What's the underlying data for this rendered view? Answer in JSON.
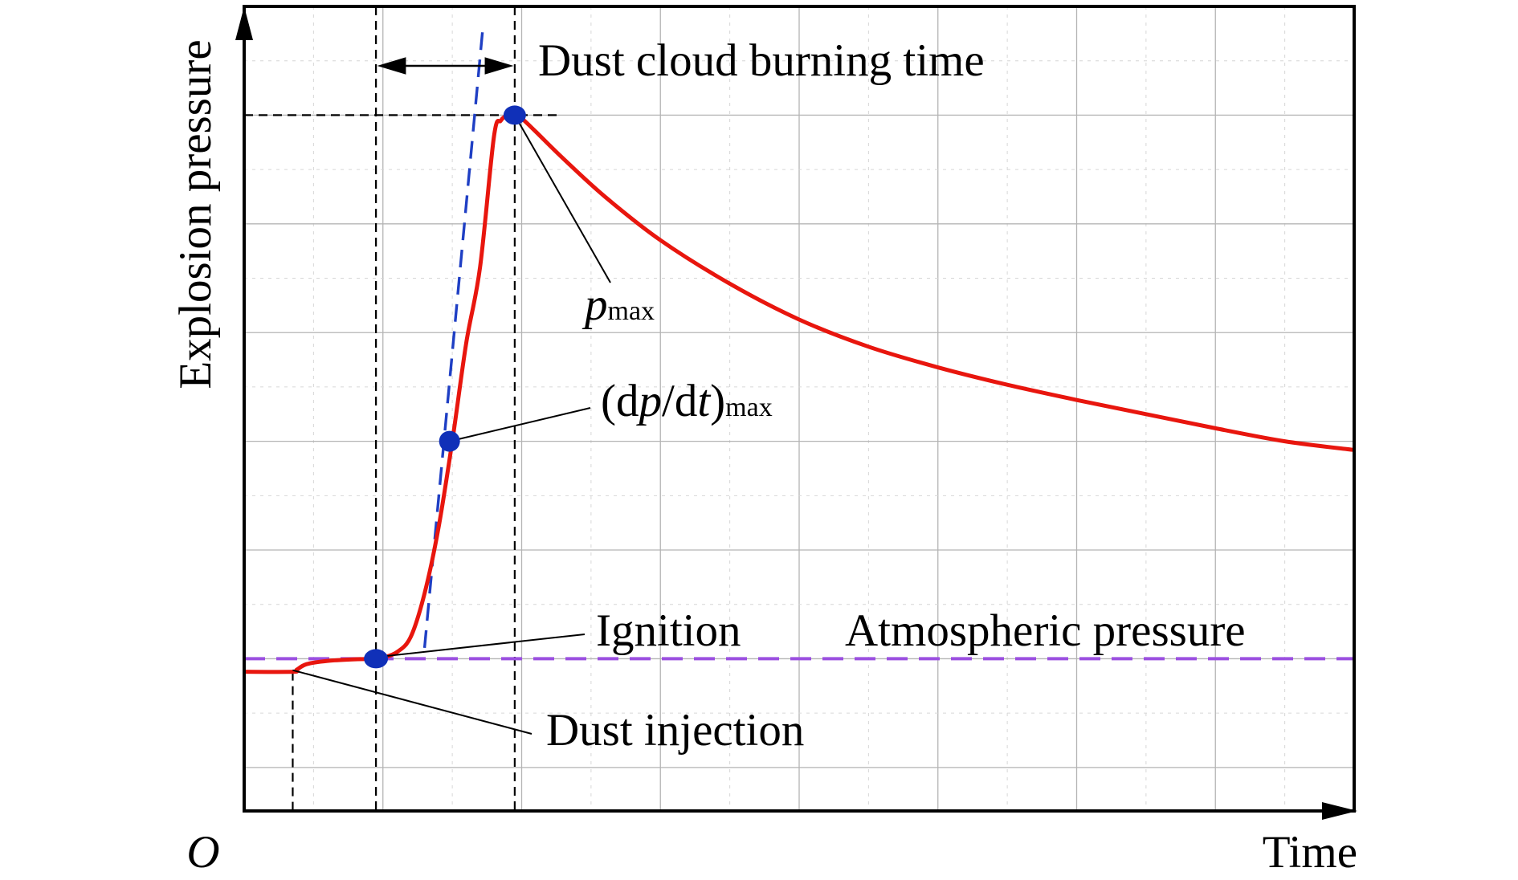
{
  "chart_data": {
    "type": "line",
    "xlabel": "Time",
    "ylabel": "Explosion pressure",
    "origin_label": "O",
    "grid": true,
    "colors": {
      "pressure_curve": "#e8160e",
      "atmospheric_line": "#9b4fe0",
      "tangent_line": "#1f3fc4",
      "markers": "#1030b8",
      "guides": "#000000"
    },
    "annotations": {
      "burning_time": "Dust cloud burning time",
      "pmax_main": "p",
      "pmax_sub": "max",
      "rate_open": "(d",
      "rate_p": "p",
      "rate_slash": "/d",
      "rate_t": "t",
      "rate_close": ")",
      "rate_sub": "max",
      "ignition": "Ignition",
      "atmospheric": "Atmospheric pressure",
      "dust_injection": "Dust injection"
    },
    "series": [
      {
        "values_x": [
          0,
          0.35,
          0.38,
          0.45,
          0.6,
          0.8,
          0.95,
          1.0,
          1.1,
          1.2,
          1.3,
          1.4,
          1.5,
          1.6,
          1.7,
          1.8,
          1.85,
          1.9,
          1.95,
          2.0,
          2.1,
          2.3,
          2.6,
          3.0,
          3.5,
          4.0,
          4.5,
          5.0,
          5.5,
          6.0,
          6.5,
          7.0,
          7.5,
          8.0
        ],
        "values_y": [
          0.88,
          0.88,
          0.9,
          0.95,
          0.98,
          0.995,
          1.0,
          1.01,
          1.06,
          1.2,
          1.6,
          2.2,
          3.0,
          3.9,
          4.6,
          5.8,
          5.95,
          6.0,
          6.0,
          5.97,
          5.85,
          5.6,
          5.25,
          4.85,
          4.45,
          4.12,
          3.87,
          3.68,
          3.52,
          3.38,
          3.25,
          3.12,
          3.0,
          2.92
        ]
      }
    ],
    "tangent": {
      "x": [
        1.3,
        1.72
      ],
      "y": [
        1.1,
        6.8
      ]
    },
    "atmospheric_pressure": 1.0,
    "key_points": {
      "dust_injection": {
        "x": 0.35,
        "y": 0.88
      },
      "ignition": {
        "x": 0.95,
        "y": 1.0
      },
      "dpdt_max": {
        "x": 1.48,
        "y": 3.0
      },
      "pmax": {
        "x": 1.95,
        "y": 6.0
      }
    },
    "xlim": [
      0,
      8
    ],
    "ylim": [
      -0.4,
      7.0
    ]
  }
}
